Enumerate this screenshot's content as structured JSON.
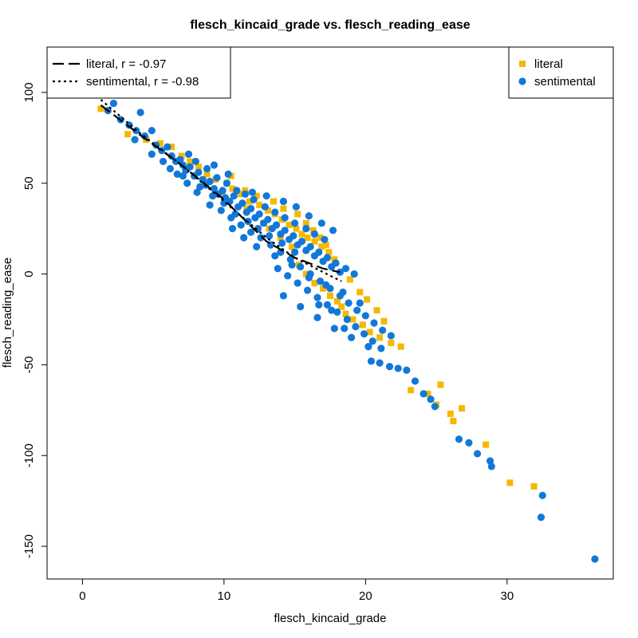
{
  "chart_data": {
    "type": "scatter",
    "title": "flesch_kincaid_grade vs. flesch_reading_ease",
    "xlabel": "flesch_kincaid_grade",
    "ylabel": "flesch_reading_ease",
    "xlim": [
      -2.5,
      37.5
    ],
    "ylim": [
      -168,
      125
    ],
    "x_ticks": [
      0,
      10,
      20,
      30
    ],
    "y_ticks": [
      -150,
      -100,
      -50,
      0,
      50,
      100
    ],
    "grid": false,
    "colors": {
      "literal": "#F5B800",
      "sentimental": "#1278D8",
      "fit": "#000000"
    },
    "series": [
      {
        "name": "literal",
        "marker": "square",
        "color": "#F5B800",
        "points": [
          [
            1.3,
            91
          ],
          [
            3.2,
            77
          ],
          [
            4.5,
            74
          ],
          [
            5.5,
            72
          ],
          [
            6.3,
            70
          ],
          [
            7.0,
            65
          ],
          [
            7.6,
            62
          ],
          [
            8.2,
            59
          ],
          [
            8.8,
            55
          ],
          [
            9.4,
            52
          ],
          [
            10.2,
            50
          ],
          [
            10.6,
            47
          ],
          [
            11.2,
            44
          ],
          [
            11.8,
            40
          ],
          [
            12.5,
            38
          ],
          [
            13.1,
            35
          ],
          [
            13.6,
            33
          ],
          [
            14.1,
            30
          ],
          [
            14.6,
            27
          ],
          [
            15.1,
            25
          ],
          [
            15.5,
            22
          ],
          [
            15.9,
            20
          ],
          [
            16.4,
            18
          ],
          [
            16.9,
            15
          ],
          [
            17.4,
            12
          ],
          [
            17.8,
            8
          ],
          [
            10.5,
            54
          ],
          [
            11.5,
            46
          ],
          [
            12.3,
            43
          ],
          [
            13.5,
            40
          ],
          [
            14.2,
            36
          ],
          [
            15.2,
            33
          ],
          [
            15.8,
            28
          ],
          [
            16.3,
            24
          ],
          [
            16.8,
            20
          ],
          [
            17.2,
            16
          ],
          [
            13.2,
            25
          ],
          [
            14.0,
            20
          ],
          [
            14.8,
            15
          ],
          [
            15.3,
            5
          ],
          [
            15.8,
            0
          ],
          [
            16.4,
            -5
          ],
          [
            17.0,
            -8
          ],
          [
            17.5,
            -12
          ],
          [
            18.0,
            -15
          ],
          [
            18.3,
            -18
          ],
          [
            18.6,
            -22
          ],
          [
            19.1,
            -25
          ],
          [
            19.8,
            -28
          ],
          [
            20.3,
            -32
          ],
          [
            21.0,
            -35
          ],
          [
            21.8,
            -38
          ],
          [
            22.5,
            -40
          ],
          [
            18.9,
            -3
          ],
          [
            19.6,
            -10
          ],
          [
            20.1,
            -14
          ],
          [
            20.8,
            -20
          ],
          [
            21.3,
            -26
          ],
          [
            12.8,
            28
          ],
          [
            11.6,
            36
          ],
          [
            9.9,
            45
          ],
          [
            8.5,
            52
          ],
          [
            23.2,
            -64
          ],
          [
            24.4,
            -66
          ],
          [
            25.3,
            -61
          ],
          [
            25.0,
            -72
          ],
          [
            26.0,
            -77
          ],
          [
            26.2,
            -81
          ],
          [
            26.8,
            -74
          ],
          [
            28.5,
            -94
          ],
          [
            30.2,
            -115
          ],
          [
            31.9,
            -117
          ]
        ]
      },
      {
        "name": "sentimental",
        "marker": "circle",
        "color": "#1278D8",
        "points": [
          [
            1.8,
            90
          ],
          [
            2.2,
            94
          ],
          [
            2.7,
            85
          ],
          [
            3.3,
            82
          ],
          [
            3.8,
            79
          ],
          [
            4.1,
            89
          ],
          [
            4.4,
            76
          ],
          [
            4.9,
            79
          ],
          [
            5.2,
            71
          ],
          [
            5.6,
            68
          ],
          [
            6.0,
            70
          ],
          [
            6.3,
            65
          ],
          [
            6.6,
            62
          ],
          [
            6.9,
            63
          ],
          [
            7.1,
            60
          ],
          [
            7.3,
            57
          ],
          [
            7.6,
            59
          ],
          [
            7.9,
            54
          ],
          [
            8.2,
            56
          ],
          [
            8.5,
            52
          ],
          [
            8.7,
            49
          ],
          [
            9.0,
            51
          ],
          [
            9.3,
            47
          ],
          [
            9.6,
            44
          ],
          [
            9.9,
            46
          ],
          [
            10.1,
            42
          ],
          [
            10.4,
            40
          ],
          [
            10.7,
            43
          ],
          [
            11.0,
            37
          ],
          [
            11.3,
            39
          ],
          [
            11.6,
            34
          ],
          [
            11.9,
            36
          ],
          [
            12.2,
            31
          ],
          [
            12.5,
            33
          ],
          [
            12.8,
            28
          ],
          [
            13.1,
            30
          ],
          [
            13.4,
            25
          ],
          [
            13.7,
            27
          ],
          [
            14.0,
            22
          ],
          [
            14.3,
            24
          ],
          [
            14.6,
            19
          ],
          [
            14.9,
            21
          ],
          [
            15.2,
            16
          ],
          [
            15.5,
            18
          ],
          [
            15.8,
            13
          ],
          [
            16.1,
            15
          ],
          [
            16.4,
            10
          ],
          [
            16.7,
            12
          ],
          [
            17.0,
            7
          ],
          [
            17.3,
            9
          ],
          [
            17.6,
            4
          ],
          [
            17.9,
            6
          ],
          [
            18.2,
            1
          ],
          [
            7.5,
            66
          ],
          [
            8.0,
            62
          ],
          [
            8.8,
            58
          ],
          [
            9.5,
            53
          ],
          [
            10.2,
            50
          ],
          [
            10.9,
            46
          ],
          [
            11.5,
            44
          ],
          [
            12.1,
            41
          ],
          [
            12.9,
            37
          ],
          [
            13.6,
            34
          ],
          [
            14.3,
            31
          ],
          [
            15.0,
            28
          ],
          [
            15.8,
            25
          ],
          [
            16.4,
            22
          ],
          [
            17.1,
            19
          ],
          [
            9.0,
            38
          ],
          [
            9.8,
            35
          ],
          [
            10.5,
            31
          ],
          [
            11.2,
            27
          ],
          [
            11.9,
            23
          ],
          [
            12.6,
            20
          ],
          [
            13.3,
            16
          ],
          [
            14.0,
            12
          ],
          [
            14.7,
            8
          ],
          [
            15.4,
            4
          ],
          [
            16.1,
            0
          ],
          [
            16.8,
            -4
          ],
          [
            17.5,
            -8
          ],
          [
            18.2,
            -12
          ],
          [
            18.8,
            -16
          ],
          [
            19.4,
            -20
          ],
          [
            20.0,
            -23
          ],
          [
            20.6,
            -27
          ],
          [
            21.2,
            -31
          ],
          [
            21.8,
            -34
          ],
          [
            13.8,
            3
          ],
          [
            14.5,
            -1
          ],
          [
            15.2,
            -5
          ],
          [
            15.9,
            -9
          ],
          [
            16.6,
            -13
          ],
          [
            17.3,
            -17
          ],
          [
            18.0,
            -21
          ],
          [
            18.7,
            -25
          ],
          [
            19.3,
            -29
          ],
          [
            19.9,
            -33
          ],
          [
            20.5,
            -37
          ],
          [
            21.1,
            -41
          ],
          [
            20.4,
            -48
          ],
          [
            21.0,
            -49
          ],
          [
            21.7,
            -51
          ],
          [
            22.3,
            -52
          ],
          [
            22.9,
            -53
          ],
          [
            23.5,
            -59
          ],
          [
            24.1,
            -66
          ],
          [
            24.6,
            -69
          ],
          [
            24.9,
            -73
          ],
          [
            26.6,
            -91
          ],
          [
            27.3,
            -93
          ],
          [
            27.9,
            -99
          ],
          [
            28.8,
            -103
          ],
          [
            28.9,
            -106
          ],
          [
            32.5,
            -122
          ],
          [
            32.4,
            -134
          ],
          [
            36.2,
            -157
          ],
          [
            6.2,
            58
          ],
          [
            7.1,
            54
          ],
          [
            8.3,
            48
          ],
          [
            9.2,
            43
          ],
          [
            10.0,
            39
          ],
          [
            10.8,
            33
          ],
          [
            11.7,
            29
          ],
          [
            12.4,
            25
          ],
          [
            13.2,
            21
          ],
          [
            14.1,
            17
          ],
          [
            15.0,
            12
          ],
          [
            12.0,
            45
          ],
          [
            13.0,
            43
          ],
          [
            14.2,
            40
          ],
          [
            15.1,
            37
          ],
          [
            16.0,
            32
          ],
          [
            16.9,
            28
          ],
          [
            17.7,
            24
          ],
          [
            9.3,
            60
          ],
          [
            10.3,
            55
          ],
          [
            8.1,
            45
          ],
          [
            7.4,
            50
          ],
          [
            6.7,
            55
          ],
          [
            5.7,
            62
          ],
          [
            4.9,
            66
          ],
          [
            3.7,
            74
          ],
          [
            13.6,
            10
          ],
          [
            14.8,
            5
          ],
          [
            16.0,
            -2
          ],
          [
            17.2,
            -6
          ],
          [
            18.4,
            -10
          ],
          [
            19.6,
            -16
          ],
          [
            20.2,
            -40
          ],
          [
            19.0,
            -35
          ],
          [
            17.8,
            -30
          ],
          [
            16.6,
            -24
          ],
          [
            15.4,
            -18
          ],
          [
            14.2,
            -12
          ],
          [
            19.2,
            0
          ],
          [
            18.6,
            3
          ],
          [
            16.7,
            -17
          ],
          [
            17.6,
            -20
          ],
          [
            18.5,
            -30
          ],
          [
            10.6,
            25
          ],
          [
            11.4,
            20
          ],
          [
            12.3,
            15
          ]
        ]
      }
    ],
    "fit_lines": [
      {
        "name": "literal",
        "r": -0.97,
        "dash": "long",
        "points": [
          [
            1.3,
            93
          ],
          [
            4.0,
            77
          ],
          [
            7.0,
            60
          ],
          [
            10.0,
            41
          ],
          [
            13.0,
            18
          ],
          [
            15.0,
            9
          ],
          [
            17.0,
            3
          ],
          [
            18.2,
            1
          ]
        ]
      },
      {
        "name": "sentimental",
        "r": -0.98,
        "dash": "dotted",
        "points": [
          [
            1.0,
            98
          ],
          [
            4.0,
            78
          ],
          [
            7.0,
            60
          ],
          [
            10.0,
            40
          ],
          [
            13.0,
            20
          ],
          [
            15.0,
            9
          ],
          [
            17.0,
            1
          ],
          [
            18.3,
            -4
          ]
        ]
      }
    ],
    "legend_left": {
      "placement": "top-left",
      "entries": [
        {
          "label": "literal, r = -0.97",
          "dash": "long"
        },
        {
          "label": "sentimental, r = -0.98",
          "dash": "dotted"
        }
      ]
    },
    "legend_right": {
      "placement": "top-right",
      "entries": [
        {
          "label": "literal",
          "marker": "square",
          "color": "#F5B800"
        },
        {
          "label": "sentimental",
          "marker": "circle",
          "color": "#1278D8"
        }
      ]
    }
  }
}
